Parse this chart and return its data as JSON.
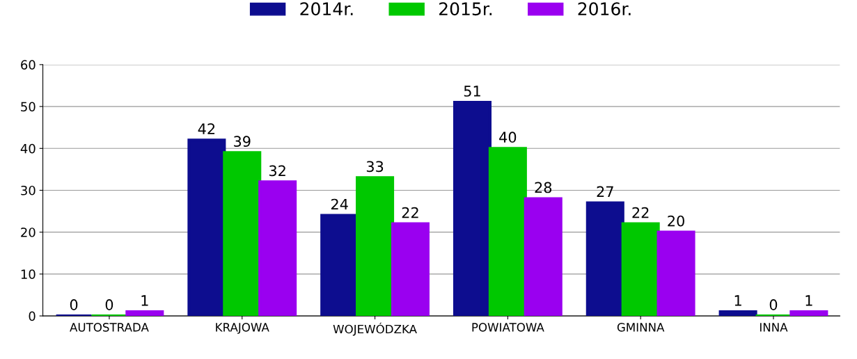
{
  "chart_data": {
    "type": "bar",
    "categories": [
      "AUTOSTRADA",
      "KRAJOWA",
      "WOJEWÓDZKA",
      "POWIATOWA",
      "GMINNA",
      "INNA"
    ],
    "series": [
      {
        "name": "2014r.",
        "color": "#0d0d8f",
        "values": [
          0,
          42,
          24,
          51,
          27,
          1
        ]
      },
      {
        "name": "2015r.",
        "color": "#00c800",
        "values": [
          0,
          39,
          33,
          40,
          22,
          0
        ]
      },
      {
        "name": "2016r.",
        "color": "#9a00f0",
        "values": [
          1,
          32,
          22,
          28,
          20,
          1
        ]
      }
    ],
    "ylim": [
      0,
      60
    ],
    "yticks": [
      0,
      10,
      20,
      30,
      40,
      50,
      60
    ],
    "grid": "y",
    "legend": "top",
    "data_labels": true
  }
}
